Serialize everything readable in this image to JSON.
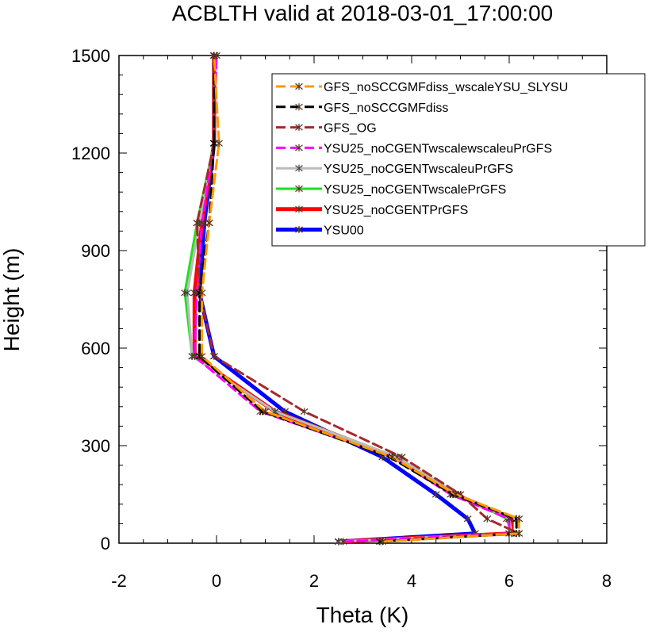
{
  "chart_data": {
    "type": "line",
    "title": "ACBLTH valid at 2018-03-01_17:00:00",
    "xlabel": "Theta (K)",
    "ylabel": "Height (m)",
    "xlim": [
      -2,
      8
    ],
    "ylim": [
      0,
      1500
    ],
    "xticks": [
      -2,
      0,
      2,
      4,
      6,
      8
    ],
    "yticks": [
      0,
      300,
      600,
      900,
      1200,
      1500
    ],
    "xtick_labels": [
      "-2",
      "0",
      "2",
      "4",
      "6",
      "8"
    ],
    "ytick_labels": [
      "0",
      "300",
      "600",
      "900",
      "1200",
      "1500"
    ],
    "grid": false,
    "legend_position": "top-right",
    "series": [
      {
        "name": "GFS_noSCCGMFdiss_wscaleYSU_SLYSU",
        "color": "#ff9900",
        "dash": "dash",
        "x": [
          3.4,
          6.2,
          6.2,
          4.9,
          3.6,
          1.0,
          -0.3,
          -0.3,
          -0.15,
          0.05,
          -0.05
        ],
        "y": [
          5,
          30,
          75,
          150,
          265,
          405,
          575,
          770,
          985,
          1230,
          1500
        ]
      },
      {
        "name": "GFS_noSCCGMFdiss",
        "color": "#000000",
        "dash": "dash",
        "x": [
          3.35,
          6.15,
          6.15,
          4.85,
          3.55,
          0.95,
          -0.35,
          -0.35,
          -0.15,
          -0.05,
          -0.05
        ],
        "y": [
          5,
          30,
          75,
          150,
          265,
          405,
          575,
          770,
          985,
          1230,
          1500
        ]
      },
      {
        "name": "GFS_OG",
        "color": "#a52a2a",
        "dash": "dash",
        "x": [
          3.4,
          6.2,
          5.55,
          5.0,
          3.8,
          1.8,
          -0.05,
          -0.35,
          -0.4,
          -0.05,
          -0.05
        ],
        "y": [
          5,
          30,
          75,
          150,
          265,
          405,
          575,
          770,
          985,
          1230,
          1500
        ]
      },
      {
        "name": "YSU25_noCGENTwscalewscaleuPrGFS",
        "color": "#ff00ff",
        "dash": "dash",
        "x": [
          2.6,
          6.0,
          6.0,
          4.8,
          3.6,
          0.9,
          -0.45,
          -0.4,
          -0.3,
          -0.05,
          0.0
        ],
        "y": [
          5,
          30,
          75,
          150,
          265,
          405,
          575,
          770,
          985,
          1230,
          1500
        ]
      },
      {
        "name": "YSU25_noCGENTwscaleuPrGFS",
        "color": "#bbbbbb",
        "dash": "solid",
        "x": [
          2.5,
          6.05,
          6.0,
          4.95,
          3.7,
          1.2,
          -0.5,
          -0.6,
          -0.35,
          -0.05,
          -0.05
        ],
        "y": [
          5,
          30,
          75,
          150,
          265,
          405,
          575,
          770,
          985,
          1230,
          1500
        ]
      },
      {
        "name": "YSU25_noCGENTwscalePrGFS",
        "color": "#22dd22",
        "dash": "solid",
        "x": [
          2.5,
          6.05,
          5.95,
          4.95,
          3.7,
          1.2,
          -0.5,
          -0.65,
          -0.4,
          -0.05,
          -0.05
        ],
        "y": [
          5,
          30,
          75,
          150,
          265,
          405,
          575,
          770,
          985,
          1230,
          1500
        ]
      },
      {
        "name": "YSU25_noCGENTPrGFS",
        "color": "#ff0000",
        "dash": "solid",
        "x": [
          2.5,
          6.05,
          6.05,
          4.9,
          3.65,
          1.2,
          -0.45,
          -0.45,
          -0.3,
          -0.05,
          -0.05
        ],
        "y": [
          5,
          30,
          75,
          150,
          265,
          405,
          575,
          770,
          985,
          1230,
          1500
        ]
      },
      {
        "name": "YSU00",
        "color": "#0000ff",
        "dash": "solid",
        "x": [
          2.5,
          5.3,
          5.15,
          4.5,
          3.4,
          1.4,
          -0.05,
          -0.35,
          -0.25,
          -0.05,
          -0.05
        ],
        "y": [
          5,
          30,
          75,
          150,
          265,
          405,
          575,
          770,
          985,
          1230,
          1500
        ]
      }
    ]
  }
}
